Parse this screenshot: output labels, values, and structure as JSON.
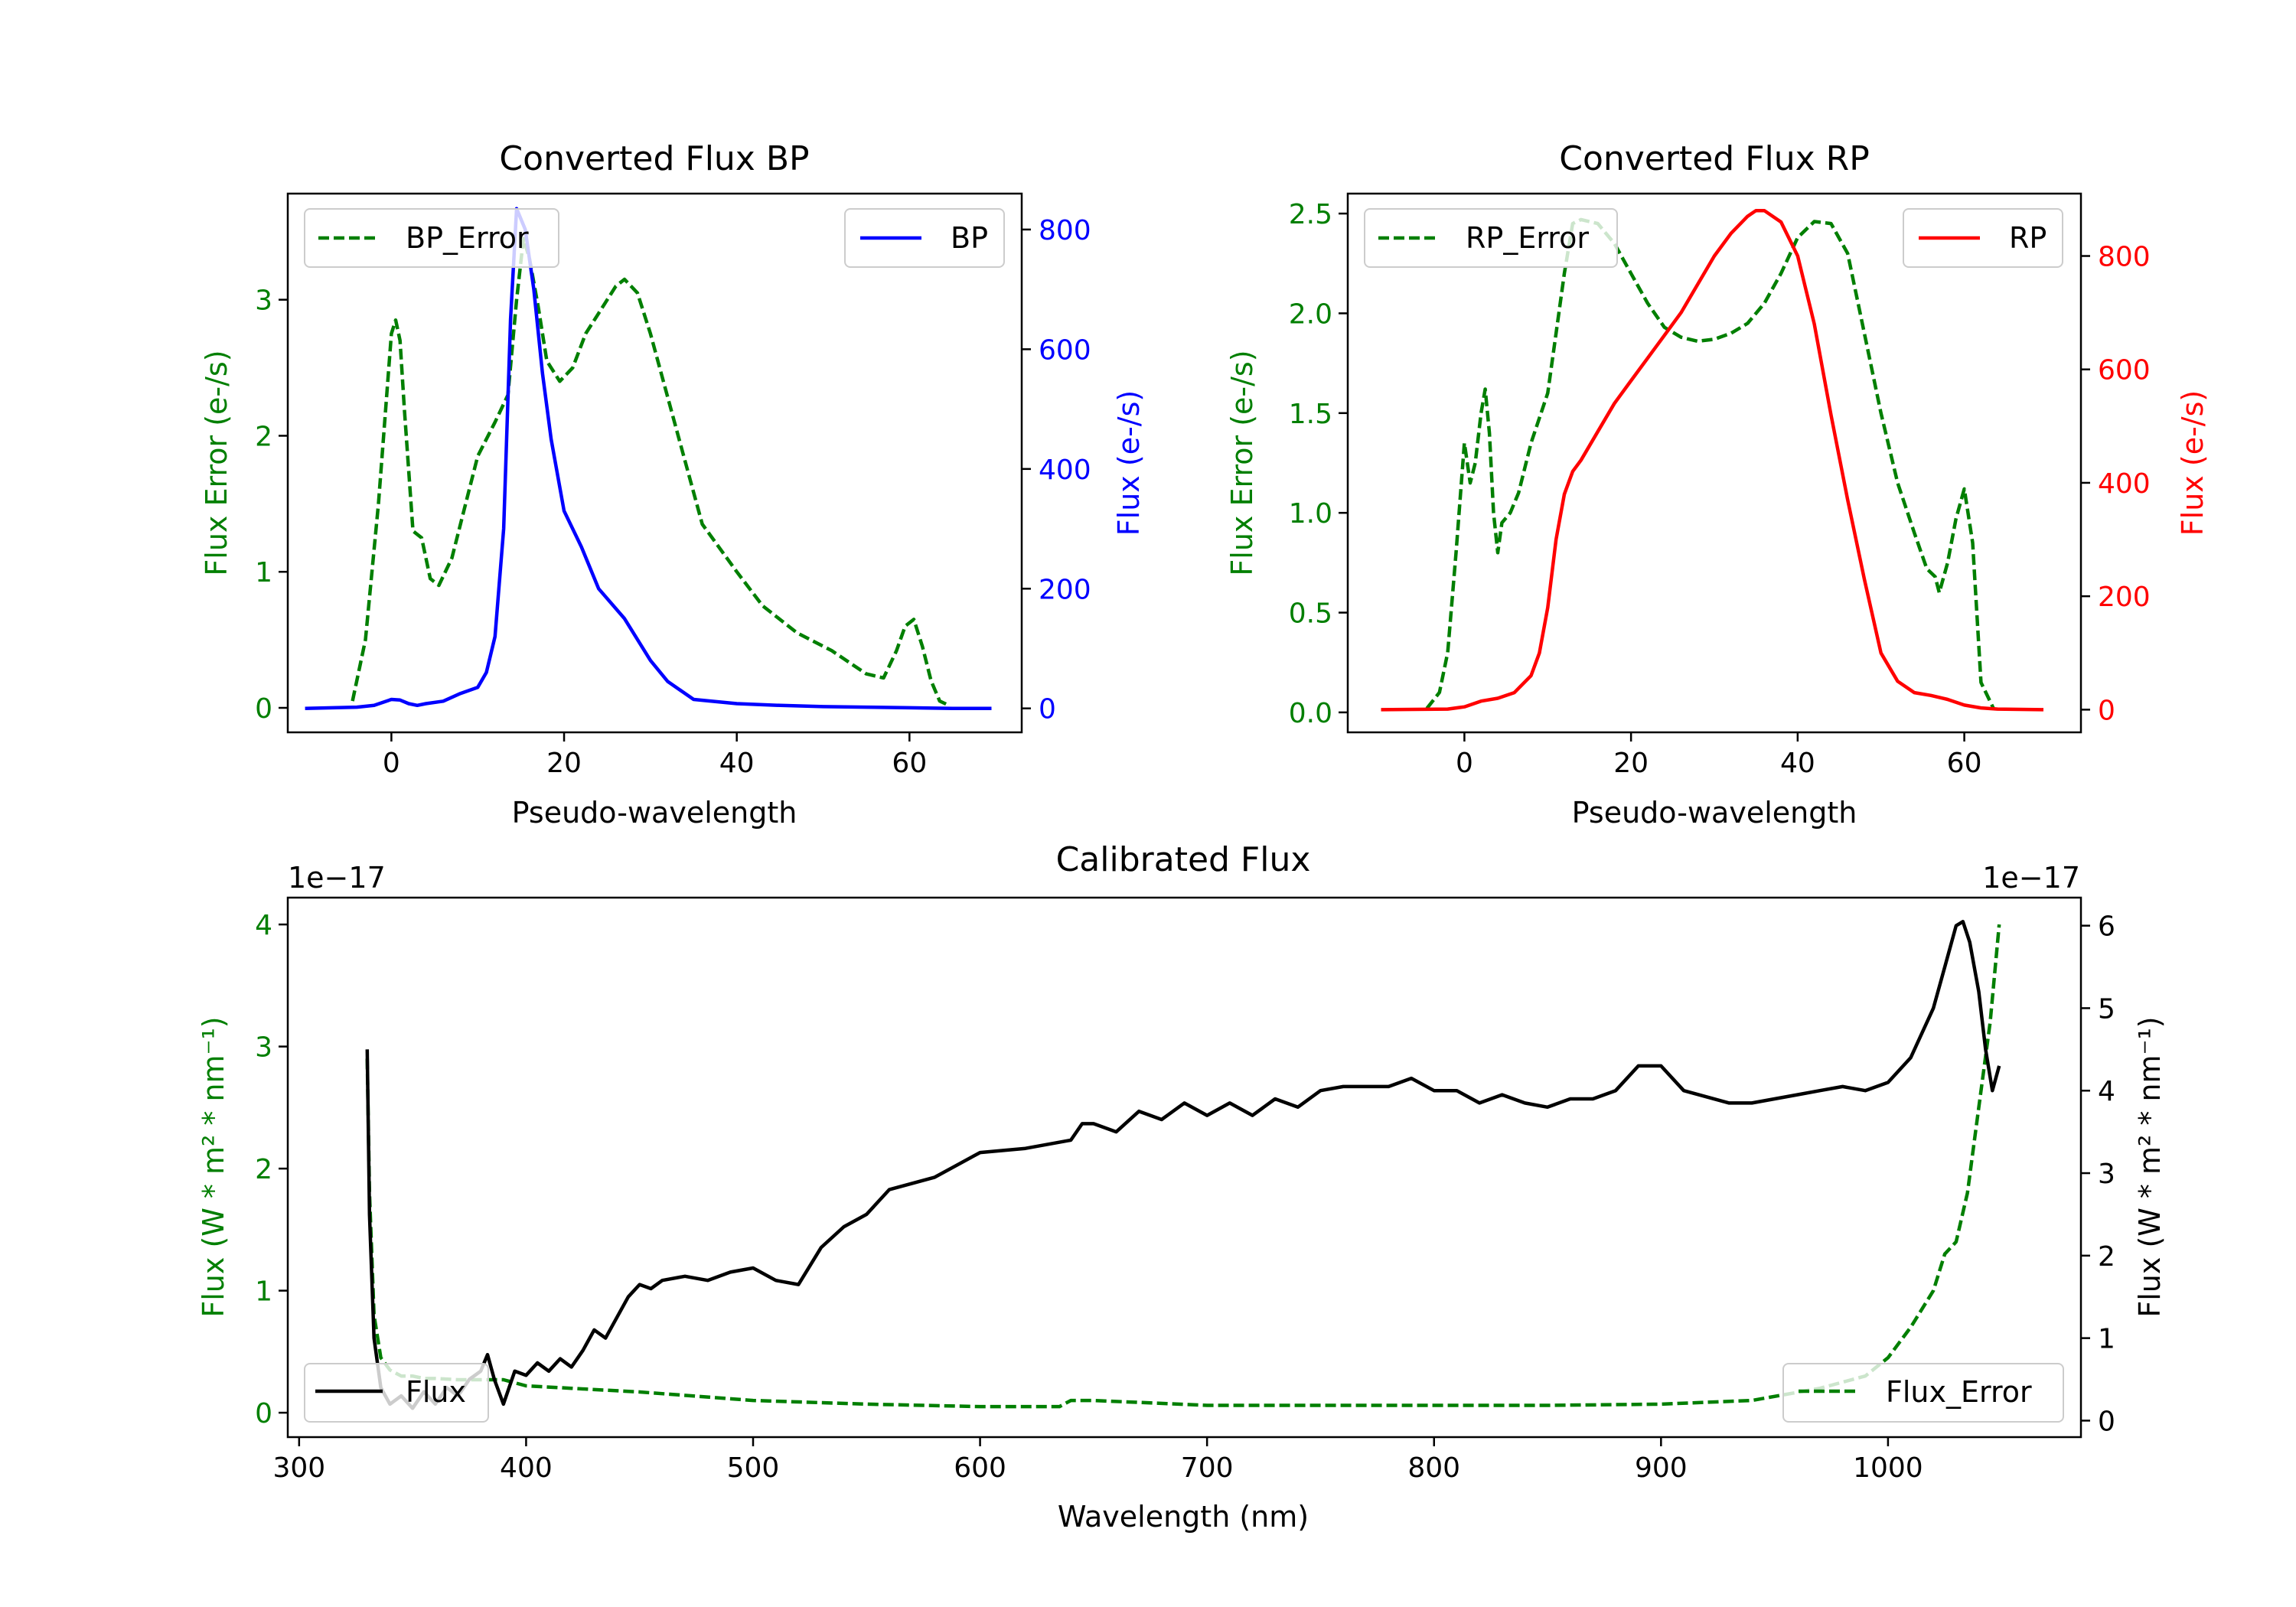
{
  "chart_data": [
    {
      "id": "bp",
      "type": "line",
      "title": "Converted Flux BP",
      "xlabel": "Pseudo-wavelength",
      "ylabel_left": "Flux Error (e-/s)",
      "ylabel_right": "Flux (e-/s)",
      "xlim": [
        -12,
        73
      ],
      "ylim_left": [
        -0.18,
        3.78
      ],
      "ylim_right": [
        -40,
        860
      ],
      "xticks": [
        0,
        20,
        40,
        60
      ],
      "yticks_left": [
        0,
        1,
        2,
        3
      ],
      "yticks_right": [
        0,
        200,
        400,
        600,
        800
      ],
      "left_axis_color": "#007f00",
      "right_axis_color": "#0000ff",
      "legend_left": "top-left",
      "legend_right": "top-right",
      "series": [
        {
          "name": "BP_Error",
          "axis": "left",
          "color": "#007f00",
          "style": "dashed",
          "x": [
            -4.5,
            -3,
            -1.5,
            0,
            0.5,
            1,
            1.5,
            2.5,
            3.5,
            4.5,
            5.5,
            7,
            9,
            10,
            12,
            13.5,
            14.5,
            15.3,
            16,
            17,
            18,
            19.5,
            21,
            22.5,
            24,
            26,
            27,
            28.5,
            30,
            33,
            36,
            40,
            43,
            47,
            51,
            55,
            57,
            58.5,
            59.5,
            60.5,
            61.5,
            62.5,
            63.5,
            64.5
          ],
          "y": [
            0.05,
            0.5,
            1.5,
            2.75,
            2.85,
            2.7,
            2.2,
            1.3,
            1.25,
            0.95,
            0.9,
            1.1,
            1.6,
            1.85,
            2.1,
            2.3,
            3.0,
            3.45,
            3.3,
            2.95,
            2.55,
            2.4,
            2.5,
            2.75,
            2.9,
            3.1,
            3.15,
            3.05,
            2.75,
            2.05,
            1.35,
            1.0,
            0.75,
            0.55,
            0.42,
            0.25,
            0.22,
            0.42,
            0.6,
            0.65,
            0.45,
            0.2,
            0.05,
            0.02
          ]
        },
        {
          "name": "BP",
          "axis": "right",
          "color": "#0000ff",
          "style": "solid",
          "x": [
            -10,
            -4,
            -2,
            0,
            1,
            2,
            3,
            4,
            6,
            8,
            10,
            11,
            12,
            13,
            13.8,
            14.5,
            15.5,
            16.5,
            17.5,
            18.5,
            20,
            22,
            24,
            27,
            30,
            32,
            35,
            40,
            45,
            50,
            55,
            60,
            65,
            69.5
          ],
          "y": [
            0,
            2,
            5,
            15,
            14,
            8,
            5,
            8,
            12,
            25,
            35,
            60,
            120,
            300,
            650,
            835,
            800,
            700,
            560,
            450,
            330,
            270,
            200,
            150,
            80,
            45,
            15,
            8,
            5,
            3,
            2,
            1,
            0,
            0
          ]
        }
      ]
    },
    {
      "id": "rp",
      "type": "line",
      "title": "Converted Flux RP",
      "xlabel": "Pseudo-wavelength",
      "ylabel_left": "Flux Error (e-/s)",
      "ylabel_right": "Flux (e-/s)",
      "xlim": [
        -14,
        74
      ],
      "ylim_left": [
        -0.1,
        2.6
      ],
      "ylim_right": [
        -40,
        910
      ],
      "xticks": [
        0,
        20,
        40,
        60
      ],
      "yticks_left": [
        0.0,
        0.5,
        1.0,
        1.5,
        2.0,
        2.5
      ],
      "yticks_right": [
        0,
        200,
        400,
        600,
        800
      ],
      "left_axis_color": "#007f00",
      "right_axis_color": "#ff0000",
      "legend_left": "top-left",
      "legend_right": "top-right",
      "series": [
        {
          "name": "RP_Error",
          "axis": "left",
          "color": "#007f00",
          "style": "dashed",
          "x": [
            -4.5,
            -3,
            -2,
            -1,
            0,
            0.7,
            1.3,
            2,
            2.5,
            3,
            3.5,
            4,
            4.5,
            5.5,
            6.5,
            8,
            10,
            11,
            12,
            13,
            14,
            16,
            18,
            20,
            22,
            24,
            26,
            28,
            30,
            32,
            34,
            36,
            38,
            40,
            42,
            44,
            46,
            48,
            50,
            52,
            54,
            55.5,
            56.5,
            57,
            58,
            59,
            60,
            61,
            62,
            63.5
          ],
          "y": [
            0.02,
            0.1,
            0.3,
            0.8,
            1.35,
            1.15,
            1.25,
            1.5,
            1.62,
            1.4,
            1.0,
            0.8,
            0.95,
            1.0,
            1.1,
            1.35,
            1.6,
            1.9,
            2.2,
            2.45,
            2.47,
            2.45,
            2.35,
            2.2,
            2.05,
            1.93,
            1.88,
            1.86,
            1.87,
            1.9,
            1.95,
            2.05,
            2.2,
            2.38,
            2.46,
            2.45,
            2.3,
            1.9,
            1.5,
            1.15,
            0.9,
            0.72,
            0.68,
            0.6,
            0.75,
            0.97,
            1.12,
            0.85,
            0.15,
            0.02
          ]
        },
        {
          "name": "RP",
          "axis": "right",
          "color": "#ff0000",
          "style": "solid",
          "x": [
            -10,
            -2,
            0,
            2,
            4,
            6,
            8,
            9,
            10,
            11,
            12,
            13,
            14,
            16,
            18,
            20,
            22,
            24,
            26,
            28,
            30,
            32,
            34,
            35,
            36,
            38,
            40,
            42,
            44,
            46,
            48,
            50,
            52,
            54,
            56,
            58,
            60,
            62,
            64,
            69.5
          ],
          "y": [
            0,
            1,
            5,
            15,
            20,
            30,
            60,
            100,
            180,
            300,
            380,
            420,
            440,
            490,
            540,
            580,
            620,
            660,
            700,
            750,
            800,
            840,
            870,
            880,
            880,
            860,
            800,
            680,
            520,
            370,
            230,
            100,
            50,
            30,
            25,
            18,
            8,
            3,
            1,
            0
          ]
        }
      ]
    },
    {
      "id": "cal",
      "type": "line",
      "title": "Calibrated Flux",
      "xlabel": "Wavelength (nm)",
      "ylabel_left": "Flux (W * m² * nm⁻¹)",
      "ylabel_right": "Flux (W * m² * nm⁻¹)",
      "offset_left": "1e−17",
      "offset_right": "1e−17",
      "xlim": [
        295,
        1085
      ],
      "ylim_left": [
        -0.2,
        4.22
      ],
      "ylim_right": [
        -0.2,
        6.34
      ],
      "xticks": [
        300,
        400,
        500,
        600,
        700,
        800,
        900,
        1000
      ],
      "yticks_left": [
        0,
        1,
        2,
        3,
        4
      ],
      "yticks_right": [
        0,
        1,
        2,
        3,
        4,
        5,
        6
      ],
      "left_axis_color": "#007f00",
      "right_axis_color": "#000000",
      "legend_left": "lower-left",
      "legend_right": "lower-right",
      "series": [
        {
          "name": "Flux_Error",
          "axis": "left",
          "color": "#007f00",
          "style": "dashed",
          "x": [
            330,
            331,
            333,
            336,
            340,
            345,
            350,
            355,
            360,
            370,
            380,
            390,
            400,
            420,
            450,
            500,
            550,
            600,
            635,
            640,
            650,
            700,
            750,
            800,
            850,
            900,
            940,
            970,
            990,
            1000,
            1010,
            1020,
            1025,
            1030,
            1035,
            1040,
            1045,
            1049
          ],
          "y": [
            2.9,
            1.8,
            0.8,
            0.45,
            0.35,
            0.3,
            0.3,
            0.28,
            0.28,
            0.27,
            0.27,
            0.27,
            0.22,
            0.2,
            0.17,
            0.1,
            0.07,
            0.05,
            0.05,
            0.1,
            0.1,
            0.06,
            0.06,
            0.06,
            0.06,
            0.07,
            0.1,
            0.2,
            0.3,
            0.45,
            0.7,
            1.0,
            1.3,
            1.4,
            1.8,
            2.5,
            3.2,
            4.0
          ]
        },
        {
          "name": "Flux",
          "axis": "right",
          "color": "#000000",
          "style": "solid",
          "x": [
            330,
            331,
            333,
            336,
            340,
            345,
            350,
            355,
            360,
            365,
            370,
            375,
            380,
            383,
            386,
            390,
            395,
            400,
            405,
            410,
            415,
            420,
            425,
            430,
            435,
            440,
            445,
            450,
            455,
            460,
            470,
            480,
            490,
            500,
            510,
            520,
            530,
            540,
            550,
            560,
            580,
            600,
            620,
            640,
            645,
            650,
            660,
            670,
            680,
            690,
            700,
            710,
            720,
            730,
            740,
            750,
            760,
            780,
            790,
            800,
            810,
            820,
            830,
            840,
            850,
            860,
            870,
            880,
            890,
            900,
            910,
            930,
            940,
            960,
            970,
            980,
            990,
            1000,
            1010,
            1020,
            1025,
            1030,
            1033,
            1036,
            1040,
            1043,
            1046,
            1049
          ],
          "y": [
            4.5,
            2.5,
            1.0,
            0.4,
            0.2,
            0.3,
            0.15,
            0.35,
            0.2,
            0.4,
            0.3,
            0.5,
            0.6,
            0.8,
            0.5,
            0.2,
            0.6,
            0.55,
            0.7,
            0.6,
            0.75,
            0.65,
            0.85,
            1.1,
            1.0,
            1.25,
            1.5,
            1.65,
            1.6,
            1.7,
            1.75,
            1.7,
            1.8,
            1.85,
            1.7,
            1.65,
            2.1,
            2.35,
            2.5,
            2.8,
            2.95,
            3.25,
            3.3,
            3.4,
            3.6,
            3.6,
            3.5,
            3.75,
            3.65,
            3.85,
            3.7,
            3.85,
            3.7,
            3.9,
            3.8,
            4.0,
            4.05,
            4.05,
            4.15,
            4.0,
            4.0,
            3.85,
            3.95,
            3.85,
            3.8,
            3.9,
            3.9,
            4.0,
            4.3,
            4.3,
            4.0,
            3.85,
            3.85,
            3.95,
            4.0,
            4.05,
            4.0,
            4.1,
            4.4,
            5.0,
            5.5,
            6.0,
            6.05,
            5.8,
            5.2,
            4.5,
            4.0,
            4.3
          ]
        }
      ]
    }
  ]
}
